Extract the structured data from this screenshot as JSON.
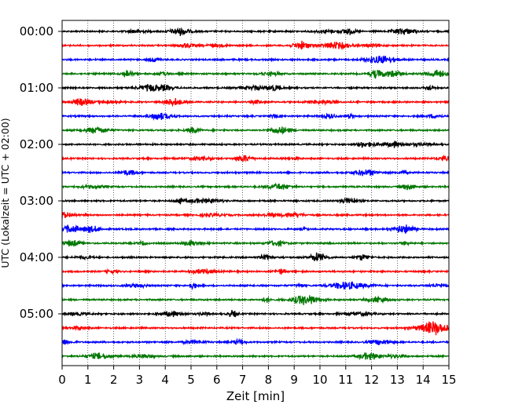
{
  "chart_data": {
    "type": "line",
    "title": "",
    "xlabel": "Zeit  [min]",
    "ylabel": "UTC (Lokalzeit = UTC + 02:00)",
    "xlim": [
      0,
      15
    ],
    "x_ticks": [
      "0",
      "1",
      "2",
      "3",
      "4",
      "5",
      "6",
      "7",
      "8",
      "9",
      "10",
      "11",
      "12",
      "13",
      "14",
      "15"
    ],
    "y_ticks": [
      "00:00",
      "01:00",
      "02:00",
      "03:00",
      "04:00",
      "05:00"
    ],
    "trace_interval_min": 15,
    "trace_count": 24,
    "trace_colors": [
      "#000000",
      "#ff0000",
      "#0000ff",
      "#007700"
    ],
    "vertical_grid": true,
    "grid_style": "dotted",
    "legend": "none"
  }
}
